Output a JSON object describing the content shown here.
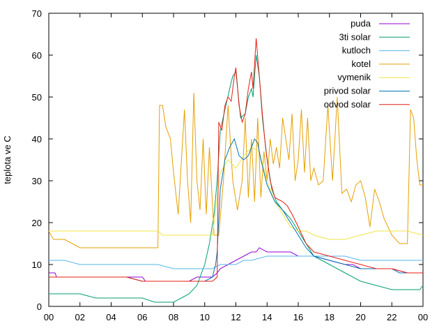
{
  "chart_data": {
    "type": "line",
    "title": "",
    "xlabel": "",
    "ylabel": "teplota ve C",
    "xlim": [
      0,
      24
    ],
    "ylim": [
      0,
      70
    ],
    "x_tick_labels": [
      "00",
      "02",
      "04",
      "06",
      "08",
      "10",
      "12",
      "14",
      "16",
      "18",
      "20",
      "22",
      "00"
    ],
    "y_tick_labels": [
      "0",
      "10",
      "20",
      "30",
      "40",
      "50",
      "60",
      "70"
    ],
    "grid": false,
    "legend_position": "top-right",
    "series": [
      {
        "name": "puda",
        "color": "#9400d3",
        "x": [
          0,
          0.4,
          0.5,
          1,
          2,
          4,
          6,
          6.2,
          6.3,
          7,
          8,
          9,
          9.5,
          10,
          10.5,
          10.8,
          11,
          11.5,
          12,
          12.5,
          13,
          13.3,
          13.5,
          14,
          14.5,
          15,
          15.5,
          16,
          16.5,
          17,
          18,
          19,
          19.5,
          20,
          21,
          22,
          23,
          24
        ],
        "values": [
          8,
          8,
          7,
          7,
          7,
          7,
          7,
          6,
          6,
          6,
          6,
          6,
          7,
          7,
          7,
          8,
          9,
          10,
          11,
          12,
          13,
          13,
          14,
          13,
          13,
          13,
          13,
          12,
          12,
          12,
          11,
          10,
          10,
          9,
          9,
          9,
          8,
          8
        ]
      },
      {
        "name": "3ti solar",
        "color": "#009e73",
        "x": [
          0,
          1,
          2,
          3,
          4,
          5,
          6,
          6.8,
          7,
          8,
          8.5,
          9,
          9.5,
          10,
          10.3,
          10.6,
          10.8,
          11,
          11.3,
          11.6,
          11.8,
          12,
          12.3,
          12.6,
          12.8,
          13,
          13.1,
          13.3,
          13.5,
          13.7,
          14,
          14.3,
          14.6,
          15,
          15.5,
          16,
          16.5,
          17,
          18,
          19,
          20,
          21,
          22,
          23,
          23.8,
          24
        ],
        "values": [
          3,
          3,
          3,
          2,
          2,
          2,
          2,
          1,
          1,
          1,
          2,
          3,
          5,
          10,
          15,
          22,
          30,
          42,
          47,
          52,
          55,
          56,
          45,
          46,
          50,
          52,
          50,
          60,
          55,
          45,
          35,
          28,
          25,
          23,
          21,
          18,
          15,
          12,
          10,
          8,
          6,
          5,
          4,
          4,
          4,
          5
        ]
      },
      {
        "name": "kutloch",
        "color": "#56b4e9",
        "x": [
          0,
          1,
          2,
          3,
          4,
          5,
          6,
          7,
          8,
          9,
          10,
          10.5,
          11,
          11.5,
          12,
          12.5,
          13,
          14,
          15,
          16,
          17,
          18,
          19,
          20,
          21,
          22,
          23,
          24
        ],
        "values": [
          11,
          11,
          10,
          10,
          10,
          10,
          10,
          10,
          9,
          9,
          9,
          9,
          10,
          10,
          10,
          11,
          11,
          12,
          12,
          12,
          12,
          12,
          12,
          11,
          11,
          11,
          11,
          11
        ]
      },
      {
        "name": "kotel",
        "color": "#e69f00",
        "x": [
          0,
          0.3,
          0.5,
          1,
          1.5,
          2,
          3,
          4,
          5,
          6,
          7,
          7.1,
          7.3,
          7.5,
          7.8,
          8,
          8.3,
          8.7,
          8.9,
          9.1,
          9.3,
          9.5,
          9.7,
          9.9,
          10.1,
          10.3,
          10.6,
          10.9,
          11.2,
          11.5,
          11.8,
          12.1,
          12.4,
          12.6,
          12.8,
          13,
          13.2,
          13.4,
          13.6,
          13.8,
          14,
          14.2,
          14.4,
          14.6,
          14.8,
          15,
          15.2,
          15.4,
          15.6,
          15.8,
          16,
          16.2,
          16.4,
          16.6,
          16.8,
          17,
          17.3,
          17.6,
          17.9,
          18.2,
          18.5,
          18.8,
          19.1,
          19.4,
          19.7,
          20,
          20.3,
          20.6,
          20.9,
          21.2,
          21.5,
          22,
          22.5,
          23,
          23.2,
          23.4,
          23.6,
          23.8,
          24
        ],
        "values": [
          18,
          16,
          16,
          16,
          15,
          14,
          14,
          14,
          14,
          14,
          14,
          48,
          48,
          43,
          40,
          32,
          22,
          47,
          30,
          20,
          51,
          30,
          23,
          40,
          22,
          38,
          17,
          17,
          30,
          48,
          30,
          23,
          30,
          45,
          26,
          40,
          25,
          45,
          26,
          37,
          30,
          40,
          34,
          38,
          33,
          45,
          40,
          35,
          46,
          30,
          35,
          47,
          32,
          45,
          30,
          33,
          29,
          30,
          48,
          30,
          50,
          27,
          28,
          25,
          29,
          30,
          26,
          19,
          28,
          25,
          21,
          17,
          15,
          15,
          47,
          45,
          35,
          29,
          29
        ]
      },
      {
        "name": "vymenik",
        "color": "#f0e442",
        "x": [
          0,
          1,
          2,
          3,
          4,
          5,
          6,
          7,
          7.3,
          8,
          9,
          10,
          10.5,
          11,
          11.5,
          12,
          12.5,
          13,
          13.5,
          14,
          14.5,
          15,
          15.5,
          16,
          16.5,
          17,
          18,
          19,
          20,
          21,
          22,
          23,
          24
        ],
        "values": [
          18,
          18,
          18,
          18,
          18,
          18,
          18,
          18,
          17,
          17,
          17,
          17,
          17,
          32,
          35,
          33,
          36,
          38,
          37,
          30,
          25,
          22,
          19,
          18,
          18,
          17,
          16,
          16,
          17,
          18,
          18,
          18,
          17
        ]
      },
      {
        "name": "privod solar",
        "color": "#0072b2",
        "x": [
          0,
          1,
          2,
          3,
          4,
          5,
          6,
          7,
          8,
          9,
          10,
          10.5,
          10.7,
          10.8,
          11,
          11.3,
          11.6,
          11.9,
          12.2,
          12.5,
          12.8,
          13,
          13.2,
          13.4,
          13.6,
          13.8,
          14,
          14.5,
          15,
          15.5,
          16,
          16.5,
          17,
          18,
          19,
          20,
          21,
          22,
          22.5,
          23,
          24
        ],
        "values": [
          7,
          7,
          7,
          7,
          7,
          7,
          6,
          6,
          6,
          6,
          6,
          7,
          10,
          13,
          28,
          35,
          38,
          40,
          36,
          35,
          36,
          38,
          40,
          39,
          35,
          32,
          29,
          25,
          23,
          20,
          17,
          14,
          12,
          11,
          10,
          9,
          9,
          9,
          8,
          8,
          8
        ]
      },
      {
        "name": "odvod solar",
        "color": "#e51e10",
        "x": [
          0,
          1,
          2,
          3,
          4,
          5,
          6,
          7,
          8,
          9,
          10,
          10.5,
          10.8,
          10.9,
          11.1,
          11.3,
          11.5,
          11.7,
          11.9,
          12,
          12.2,
          12.4,
          12.6,
          12.8,
          13,
          13.1,
          13.3,
          13.5,
          13.7,
          13.9,
          14.2,
          14.5,
          15,
          15.3,
          15.6,
          16,
          16.5,
          17,
          18,
          19,
          20,
          21,
          22,
          23,
          24
        ],
        "values": [
          7,
          7,
          7,
          7,
          7,
          7,
          6,
          6,
          6,
          6,
          6,
          6,
          7,
          44,
          42,
          48,
          50,
          49,
          55,
          57,
          48,
          44,
          46,
          52,
          56,
          52,
          64,
          55,
          46,
          38,
          30,
          26,
          25,
          24,
          22,
          19,
          15,
          13,
          12,
          11,
          10,
          9,
          9,
          8,
          8
        ]
      }
    ]
  }
}
